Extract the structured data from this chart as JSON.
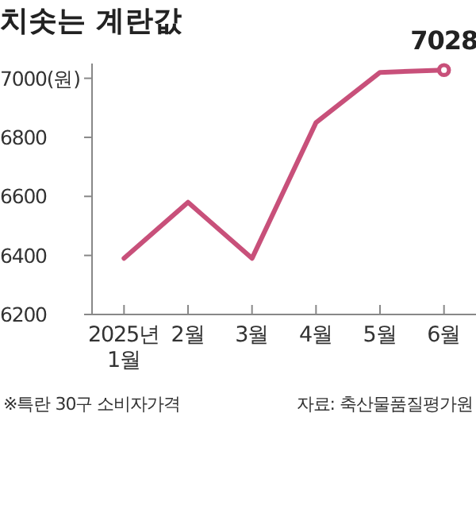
{
  "chart_data": {
    "type": "line",
    "title": "치솟는 계란값",
    "categories": [
      "2025년\n1월",
      "2월",
      "3월",
      "4월",
      "5월",
      "6월"
    ],
    "series": [
      {
        "color": "#c8507a",
        "values": [
          6390,
          6580,
          6390,
          6850,
          7020,
          7028
        ],
        "value_labels": [
          null,
          null,
          null,
          null,
          null,
          "7028"
        ]
      }
    ],
    "yticks": [
      6200,
      6400,
      6600,
      6800,
      {
        "value": 7000,
        "label": "7000(원)"
      }
    ],
    "ylim": [
      6200,
      7050
    ],
    "annotations": [
      "※특란 30구 소비자가격",
      "자료: 축산물품질평가원"
    ]
  }
}
